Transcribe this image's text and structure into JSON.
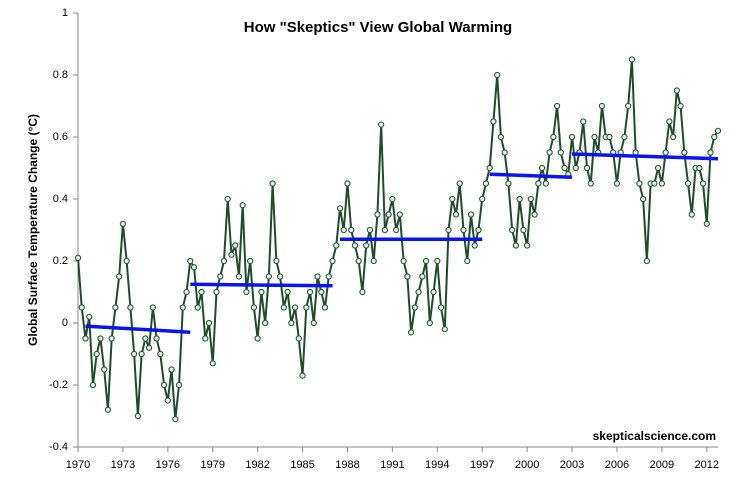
{
  "chart_data": {
    "type": "line",
    "title": "How \"Skeptics\" View Global Warming",
    "ylabel": "Global Surface Temperature Change (°C)",
    "annotation": "skepticalscience.com",
    "xlim": [
      1970,
      2012.75
    ],
    "xticks": [
      1970,
      1973,
      1976,
      1979,
      1982,
      1985,
      1988,
      1991,
      1994,
      1997,
      2000,
      2003,
      2006,
      2009,
      2012
    ],
    "ylim": [
      -0.4,
      1
    ],
    "yticks": [
      -0.4,
      -0.2,
      0,
      0.2,
      0.4,
      0.6,
      0.8,
      1
    ],
    "grid": false,
    "x": [
      1970,
      1970.25,
      1970.5,
      1970.75,
      1971,
      1971.25,
      1971.5,
      1971.75,
      1972,
      1972.25,
      1972.5,
      1972.75,
      1973,
      1973.25,
      1973.5,
      1973.75,
      1974,
      1974.25,
      1974.5,
      1974.75,
      1975,
      1975.25,
      1975.5,
      1975.75,
      1976,
      1976.25,
      1976.5,
      1976.75,
      1977,
      1977.25,
      1977.5,
      1977.75,
      1978,
      1978.25,
      1978.5,
      1978.75,
      1979,
      1979.25,
      1979.5,
      1979.75,
      1980,
      1980.25,
      1980.5,
      1980.75,
      1981,
      1981.25,
      1981.5,
      1981.75,
      1982,
      1982.25,
      1982.5,
      1982.75,
      1983,
      1983.25,
      1983.5,
      1983.75,
      1984,
      1984.25,
      1984.5,
      1984.75,
      1985,
      1985.25,
      1985.5,
      1985.75,
      1986,
      1986.25,
      1986.5,
      1986.75,
      1987,
      1987.25,
      1987.5,
      1987.75,
      1988,
      1988.25,
      1988.5,
      1988.75,
      1989,
      1989.25,
      1989.5,
      1989.75,
      1990,
      1990.25,
      1990.5,
      1990.75,
      1991,
      1991.25,
      1991.5,
      1991.75,
      1992,
      1992.25,
      1992.5,
      1992.75,
      1993,
      1993.25,
      1993.5,
      1993.75,
      1994,
      1994.25,
      1994.5,
      1994.75,
      1995,
      1995.25,
      1995.5,
      1995.75,
      1996,
      1996.25,
      1996.5,
      1996.75,
      1997,
      1997.25,
      1997.5,
      1997.75,
      1998,
      1998.25,
      1998.5,
      1998.75,
      1999,
      1999.25,
      1999.5,
      1999.75,
      2000,
      2000.25,
      2000.5,
      2000.75,
      2001,
      2001.25,
      2001.5,
      2001.75,
      2002,
      2002.25,
      2002.5,
      2002.75,
      2003,
      2003.25,
      2003.5,
      2003.75,
      2004,
      2004.25,
      2004.5,
      2004.75,
      2005,
      2005.25,
      2005.5,
      2005.75,
      2006,
      2006.25,
      2006.5,
      2006.75,
      2007,
      2007.25,
      2007.5,
      2007.75,
      2008,
      2008.25,
      2008.5,
      2008.75,
      2009,
      2009.25,
      2009.5,
      2009.75,
      2010,
      2010.25,
      2010.5,
      2010.75,
      2011,
      2011.25,
      2011.5,
      2011.75,
      2012,
      2012.25,
      2012.5,
      2012.75
    ],
    "series": [
      {
        "color": "#1f4d2a",
        "marker_fill": "#dfeee8",
        "values": [
          0.21,
          0.05,
          -0.05,
          0.02,
          -0.2,
          -0.1,
          -0.05,
          -0.15,
          -0.28,
          -0.05,
          0.05,
          0.15,
          0.32,
          0.2,
          0.05,
          -0.1,
          -0.3,
          -0.1,
          -0.05,
          -0.08,
          0.05,
          -0.05,
          -0.1,
          -0.2,
          -0.25,
          -0.15,
          -0.31,
          -0.2,
          0.05,
          0.1,
          0.2,
          0.18,
          0.05,
          0.1,
          -0.05,
          0,
          -0.13,
          0.1,
          0.15,
          0.2,
          0.4,
          0.22,
          0.25,
          0.15,
          0.38,
          0.1,
          0.2,
          0.05,
          -0.05,
          0.1,
          0,
          0.15,
          0.45,
          0.2,
          0.15,
          0.05,
          0.1,
          0,
          0.05,
          -0.05,
          -0.17,
          0.05,
          0.1,
          0,
          0.15,
          0.1,
          0.05,
          0.15,
          0.2,
          0.25,
          0.37,
          0.3,
          0.45,
          0.3,
          0.25,
          0.2,
          0.1,
          0.25,
          0.3,
          0.2,
          0.35,
          0.64,
          0.3,
          0.35,
          0.4,
          0.3,
          0.35,
          0.2,
          0.15,
          -0.03,
          0.05,
          0.1,
          0.15,
          0.2,
          0,
          0.1,
          0.2,
          0.05,
          -0.02,
          0.3,
          0.4,
          0.35,
          0.45,
          0.3,
          0.2,
          0.35,
          0.25,
          0.3,
          0.4,
          0.45,
          0.5,
          0.65,
          0.8,
          0.6,
          0.55,
          0.45,
          0.3,
          0.25,
          0.4,
          0.3,
          0.25,
          0.4,
          0.35,
          0.45,
          0.5,
          0.45,
          0.55,
          0.6,
          0.7,
          0.55,
          0.5,
          0.48,
          0.6,
          0.5,
          0.55,
          0.65,
          0.5,
          0.45,
          0.6,
          0.55,
          0.7,
          0.6,
          0.6,
          0.55,
          0.45,
          0.55,
          0.6,
          0.7,
          0.85,
          0.55,
          0.45,
          0.4,
          0.2,
          0.45,
          0.45,
          0.5,
          0.45,
          0.55,
          0.65,
          0.6,
          0.75,
          0.7,
          0.55,
          0.45,
          0.35,
          0.5,
          0.5,
          0.45,
          0.32,
          0.55,
          0.6,
          0.62
        ]
      }
    ],
    "segment_color": "#0a14f0",
    "segments": [
      {
        "x": [
          1970.5,
          1977.5
        ],
        "y": [
          -0.01,
          -0.03
        ]
      },
      {
        "x": [
          1977.5,
          1987
        ],
        "y": [
          0.125,
          0.12
        ]
      },
      {
        "x": [
          1987.5,
          1997
        ],
        "y": [
          0.27,
          0.27
        ]
      },
      {
        "x": [
          1997.5,
          2003
        ],
        "y": [
          0.48,
          0.47
        ]
      },
      {
        "x": [
          2003,
          2012.75
        ],
        "y": [
          0.545,
          0.53
        ]
      }
    ]
  }
}
